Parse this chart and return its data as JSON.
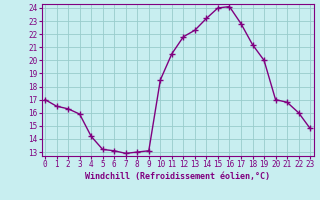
{
  "x": [
    0,
    1,
    2,
    3,
    4,
    5,
    6,
    7,
    8,
    9,
    10,
    11,
    12,
    13,
    14,
    15,
    16,
    17,
    18,
    19,
    20,
    21,
    22,
    23
  ],
  "y": [
    17.0,
    16.5,
    16.3,
    15.9,
    14.2,
    13.2,
    13.1,
    12.9,
    13.0,
    13.1,
    18.5,
    20.5,
    21.8,
    22.3,
    23.2,
    24.0,
    24.1,
    22.8,
    21.2,
    20.0,
    17.0,
    16.8,
    16.0,
    14.8
  ],
  "line_color": "#800080",
  "marker": "+",
  "marker_size": 4,
  "bg_color": "#c8eef0",
  "grid_color": "#99cccc",
  "xlabel": "Windchill (Refroidissement éolien,°C)",
  "ylim_min": 13,
  "ylim_max": 24,
  "xlim_min": 0,
  "xlim_max": 23,
  "yticks": [
    13,
    14,
    15,
    16,
    17,
    18,
    19,
    20,
    21,
    22,
    23,
    24
  ],
  "xticks": [
    0,
    1,
    2,
    3,
    4,
    5,
    6,
    7,
    8,
    9,
    10,
    11,
    12,
    13,
    14,
    15,
    16,
    17,
    18,
    19,
    20,
    21,
    22,
    23
  ],
  "tick_color": "#800080",
  "label_color": "#800080",
  "tick_fontsize": 5.5,
  "xlabel_fontsize": 6.0,
  "linewidth": 1.0,
  "marker_linewidth": 1.0
}
